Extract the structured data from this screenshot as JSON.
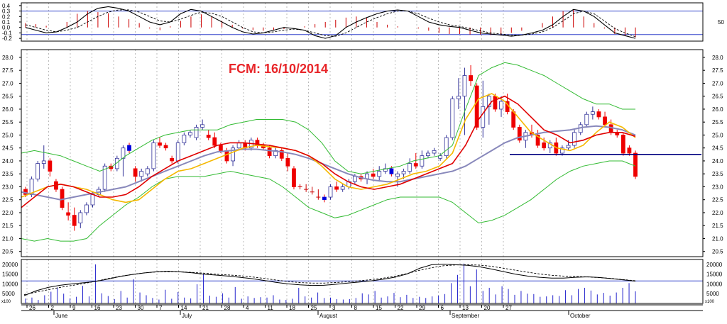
{
  "chart_data": {
    "type": "candlestick",
    "title": "FCM: 16/10/2014",
    "title_color": "#e8262a",
    "grid": true,
    "colors": {
      "up_body": "#ffffff",
      "down_body": "#ee0000",
      "blue_body": "#0000dd",
      "sma_short": "#f5b800",
      "sma_mid": "#e00000",
      "sma_long": "#8888bb",
      "bollinger": "#33bb33",
      "support": "#000080",
      "osc_bar": "#cc0000",
      "osc_line": "#000000",
      "panel_line": "#3344cc",
      "volume": "#2222cc"
    },
    "dates": [
      "26",
      "2",
      "9",
      "16",
      "23",
      "30",
      "7",
      "14",
      "21",
      "28",
      "4",
      "11",
      "18",
      "25",
      "3",
      "8",
      "15",
      "22",
      "29",
      "6",
      "13",
      "20",
      "27"
    ],
    "months": [
      "June",
      "July",
      "August",
      "September",
      "October"
    ],
    "price_panel": {
      "ylim": [
        20.3,
        28.3
      ],
      "ticks": [
        "28.0",
        "27.5",
        "27.0",
        "26.5",
        "26.0",
        "25.5",
        "25.0",
        "24.5",
        "24.0",
        "23.5",
        "23.0",
        "22.5",
        "22.0",
        "21.5",
        "21.0",
        "20.5"
      ],
      "support_level": 24.25,
      "candles": [
        [
          22.9,
          23.0,
          22.6,
          22.7
        ],
        [
          22.7,
          23.4,
          22.6,
          23.3
        ],
        [
          23.3,
          24.0,
          23.2,
          23.9
        ],
        [
          23.9,
          24.6,
          23.7,
          24.0
        ],
        [
          24.0,
          24.1,
          23.4,
          23.6
        ],
        [
          23.2,
          23.3,
          22.8,
          22.9
        ],
        [
          22.9,
          23.0,
          22.1,
          22.2
        ],
        [
          22.0,
          22.4,
          21.7,
          21.9
        ],
        [
          21.9,
          22.2,
          21.3,
          21.5
        ],
        [
          21.6,
          22.1,
          21.4,
          22.0
        ],
        [
          22.0,
          22.4,
          21.9,
          22.3
        ],
        [
          22.3,
          22.8,
          22.2,
          22.7
        ],
        [
          22.7,
          23.0,
          22.6,
          22.9
        ],
        [
          22.9,
          23.9,
          22.8,
          23.8
        ],
        [
          23.8,
          23.9,
          23.6,
          23.7
        ],
        [
          23.7,
          24.2,
          23.6,
          24.1
        ],
        [
          24.1,
          24.6,
          23.4,
          24.5
        ],
        [
          24.6,
          24.7,
          24.3,
          24.4
        ],
        [
          23.7,
          23.8,
          23.2,
          23.4
        ],
        [
          23.4,
          23.7,
          23.2,
          23.6
        ],
        [
          23.5,
          23.8,
          23.4,
          23.7
        ],
        [
          23.7,
          24.8,
          23.6,
          24.7
        ],
        [
          24.7,
          24.9,
          24.5,
          24.6
        ],
        [
          24.6,
          24.7,
          24.4,
          24.5
        ],
        [
          24.1,
          24.2,
          23.9,
          24.0
        ],
        [
          24.0,
          24.8,
          23.9,
          24.7
        ],
        [
          24.7,
          25.1,
          24.6,
          25.0
        ],
        [
          25.0,
          25.2,
          24.9,
          25.1
        ],
        [
          24.9,
          25.4,
          24.8,
          25.3
        ],
        [
          25.3,
          25.6,
          25.2,
          25.4
        ],
        [
          25.0,
          25.2,
          24.8,
          24.9
        ],
        [
          24.9,
          25.1,
          24.5,
          24.6
        ],
        [
          24.6,
          24.7,
          24.3,
          24.4
        ],
        [
          24.4,
          24.5,
          23.9,
          24.0
        ],
        [
          24.0,
          24.6,
          23.8,
          24.5
        ],
        [
          24.5,
          24.8,
          24.4,
          24.7
        ],
        [
          24.7,
          24.8,
          24.4,
          24.5
        ],
        [
          24.5,
          24.9,
          24.4,
          24.8
        ],
        [
          24.8,
          24.9,
          24.5,
          24.6
        ],
        [
          24.6,
          24.7,
          24.4,
          24.5
        ],
        [
          24.5,
          24.6,
          24.1,
          24.2
        ],
        [
          24.2,
          24.5,
          24.1,
          24.4
        ],
        [
          24.4,
          24.5,
          24.0,
          24.1
        ],
        [
          24.1,
          24.3,
          23.6,
          23.8
        ],
        [
          23.7,
          23.8,
          22.9,
          23.0
        ],
        [
          23.0,
          23.1,
          22.9,
          23.0
        ],
        [
          23.0,
          23.1,
          22.8,
          22.9
        ],
        [
          22.9,
          23.0,
          22.7,
          22.8
        ],
        [
          22.8,
          22.9,
          22.5,
          22.6
        ],
        [
          22.6,
          22.7,
          22.4,
          22.5
        ],
        [
          22.6,
          23.1,
          22.5,
          23.0
        ],
        [
          23.0,
          23.2,
          22.8,
          22.9
        ],
        [
          22.9,
          23.1,
          22.8,
          23.0
        ],
        [
          23.0,
          23.3,
          22.9,
          23.2
        ],
        [
          23.2,
          23.5,
          23.1,
          23.4
        ],
        [
          23.4,
          23.5,
          23.2,
          23.3
        ],
        [
          23.3,
          23.6,
          23.1,
          23.5
        ],
        [
          23.5,
          23.7,
          23.3,
          23.4
        ],
        [
          23.4,
          23.8,
          23.2,
          23.6
        ],
        [
          23.6,
          23.9,
          23.5,
          23.7
        ],
        [
          23.7,
          23.8,
          23.4,
          23.5
        ],
        [
          23.4,
          23.6,
          23.0,
          23.5
        ],
        [
          23.5,
          23.7,
          23.3,
          23.6
        ],
        [
          23.6,
          24.1,
          23.5,
          23.9
        ],
        [
          23.9,
          24.3,
          23.7,
          23.8
        ],
        [
          23.8,
          24.4,
          23.7,
          24.2
        ],
        [
          24.2,
          24.4,
          24.1,
          24.3
        ],
        [
          24.3,
          24.5,
          24.2,
          24.4
        ],
        [
          24.1,
          24.3,
          24.0,
          24.2
        ],
        [
          24.2,
          25.0,
          24.1,
          24.9
        ],
        [
          24.9,
          26.5,
          24.8,
          26.4
        ],
        [
          26.4,
          27.2,
          26.0,
          26.5
        ],
        [
          26.5,
          27.6,
          25.0,
          27.3
        ],
        [
          27.3,
          27.7,
          26.9,
          27.1
        ],
        [
          26.9,
          27.0,
          25.2,
          25.3
        ],
        [
          25.3,
          27.1,
          24.9,
          26.1
        ],
        [
          26.1,
          26.6,
          25.4,
          26.5
        ],
        [
          26.5,
          26.6,
          25.9,
          26.0
        ],
        [
          26.0,
          26.5,
          25.7,
          26.3
        ],
        [
          26.3,
          26.6,
          25.8,
          25.9
        ],
        [
          25.9,
          26.0,
          25.2,
          25.3
        ],
        [
          25.3,
          25.4,
          24.7,
          24.8
        ],
        [
          24.8,
          25.2,
          24.5,
          25.1
        ],
        [
          25.1,
          25.4,
          24.9,
          25.0
        ],
        [
          25.0,
          25.2,
          24.5,
          24.6
        ],
        [
          24.7,
          24.9,
          24.4,
          24.5
        ],
        [
          24.5,
          24.8,
          24.3,
          24.7
        ],
        [
          24.7,
          24.9,
          24.2,
          24.3
        ],
        [
          24.3,
          24.6,
          24.2,
          24.5
        ],
        [
          24.5,
          24.8,
          24.4,
          24.6
        ],
        [
          24.6,
          25.2,
          24.5,
          25.1
        ],
        [
          25.1,
          25.5,
          25.0,
          25.4
        ],
        [
          25.4,
          25.9,
          25.3,
          25.8
        ],
        [
          25.8,
          26.1,
          25.6,
          25.9
        ],
        [
          25.9,
          26.0,
          25.6,
          25.7
        ],
        [
          25.7,
          25.9,
          25.3,
          25.4
        ],
        [
          25.4,
          25.6,
          25.0,
          25.1
        ],
        [
          25.1,
          25.2,
          24.9,
          25.0
        ],
        [
          25.0,
          25.1,
          24.2,
          24.3
        ],
        [
          24.5,
          24.6,
          24.2,
          24.3
        ],
        [
          24.3,
          24.4,
          23.3,
          23.4
        ]
      ],
      "blue_candles": [
        17,
        49,
        60
      ],
      "doji_crosses": [
        45,
        46,
        47,
        48
      ],
      "sma_short": [
        22.6,
        22.8,
        23.0,
        23.1,
        23.0,
        22.9,
        22.7,
        22.5,
        22.4,
        22.5,
        22.9,
        23.3,
        23.6,
        23.7,
        23.9,
        24.1,
        24.3,
        24.5,
        24.6,
        24.55,
        24.5,
        24.4,
        24.2,
        23.8,
        23.3,
        23.0,
        22.9,
        23.0,
        23.1,
        23.3,
        23.5,
        23.6,
        23.8,
        24.3,
        25.6,
        26.4,
        26.6,
        26.3,
        25.7,
        25.1,
        24.8,
        24.5,
        24.4,
        24.6,
        25.1,
        25.5,
        25.3,
        24.9
      ],
      "sma_mid": [
        22.2,
        22.6,
        23.0,
        23.1,
        23.0,
        22.8,
        22.6,
        22.6,
        22.7,
        23.0,
        23.4,
        23.7,
        24.0,
        24.2,
        24.4,
        24.6,
        24.7,
        24.7,
        24.65,
        24.6,
        24.5,
        24.4,
        24.2,
        23.9,
        23.5,
        23.2,
        23.0,
        22.9,
        23.0,
        23.1,
        23.3,
        23.5,
        23.7,
        23.9,
        24.6,
        25.6,
        26.3,
        26.5,
        26.2,
        25.7,
        25.2,
        25.0,
        24.7,
        24.8,
        25.0,
        25.1,
        25.1,
        24.95
      ],
      "sma_long": [
        22.8,
        22.7,
        22.6,
        22.5,
        22.6,
        22.7,
        22.8,
        22.9,
        23.0,
        23.2,
        23.4,
        23.6,
        23.8,
        24.0,
        24.2,
        24.35,
        24.4,
        24.45,
        24.45,
        24.4,
        24.35,
        24.25,
        24.1,
        23.9,
        23.7,
        23.5,
        23.35,
        23.25,
        23.2,
        23.2,
        23.3,
        23.4,
        23.5,
        23.6,
        23.8,
        24.1,
        24.4,
        24.7,
        24.9,
        25.0,
        25.1,
        25.15,
        25.2,
        25.3,
        25.35,
        25.3,
        25.2,
        25.0
      ],
      "boll_upper": [
        24.3,
        24.4,
        24.3,
        24.2,
        24.0,
        23.8,
        23.6,
        23.8,
        24.2,
        24.5,
        24.8,
        25.0,
        25.1,
        25.2,
        25.2,
        25.2,
        25.4,
        25.5,
        25.6,
        25.6,
        25.6,
        25.5,
        25.2,
        24.7,
        24.0,
        23.6,
        23.5,
        23.6,
        23.7,
        23.8,
        24.0,
        24.1,
        24.2,
        24.6,
        26.0,
        27.3,
        27.6,
        27.8,
        27.7,
        27.5,
        27.3,
        27.0,
        26.7,
        26.4,
        26.2,
        26.2,
        26.0,
        26.0
      ],
      "boll_lower": [
        21.0,
        20.9,
        21.0,
        20.9,
        20.9,
        21.0,
        21.5,
        21.9,
        22.3,
        22.6,
        23.0,
        23.3,
        23.4,
        23.4,
        23.4,
        23.5,
        23.6,
        23.5,
        23.4,
        23.3,
        23.0,
        22.6,
        22.2,
        22.0,
        21.8,
        21.9,
        22.1,
        22.3,
        22.5,
        22.6,
        22.6,
        22.6,
        22.6,
        22.4,
        22.0,
        21.6,
        21.7,
        21.9,
        22.2,
        22.5,
        22.9,
        23.3,
        23.6,
        23.8,
        23.9,
        24.0,
        24.0,
        23.8
      ]
    },
    "oscillator_panel": {
      "ylim": [
        -0.25,
        0.45
      ],
      "ticks": [
        "0.4",
        "0.3",
        "0.2",
        "0.1",
        "0.0",
        "-0.1",
        "-0.2"
      ],
      "right_ticks": [
        "50"
      ],
      "levels": [
        0.3,
        -0.13
      ],
      "macd": [
        0.0,
        -0.05,
        -0.1,
        -0.08,
        0.0,
        0.1,
        0.25,
        0.35,
        0.38,
        0.35,
        0.3,
        0.2,
        0.1,
        0.05,
        0.1,
        0.25,
        0.33,
        0.3,
        0.2,
        0.1,
        0.0,
        -0.08,
        -0.12,
        -0.1,
        -0.05,
        0.0,
        -0.02,
        -0.05,
        -0.15,
        -0.2,
        -0.15,
        0.0,
        0.1,
        0.18,
        0.25,
        0.3,
        0.32,
        0.3,
        0.2,
        0.1,
        0.05,
        0.02,
        0.0,
        -0.05,
        -0.1,
        -0.12,
        -0.14,
        -0.16,
        -0.14,
        -0.1,
        -0.05,
        0.05,
        0.2,
        0.33,
        0.3,
        0.2,
        0.05,
        -0.1,
        -0.15,
        -0.2
      ],
      "signal": [
        0.05,
        0.0,
        -0.05,
        -0.08,
        -0.05,
        0.0,
        0.1,
        0.2,
        0.28,
        0.32,
        0.32,
        0.28,
        0.2,
        0.12,
        0.1,
        0.15,
        0.22,
        0.28,
        0.26,
        0.2,
        0.1,
        0.0,
        -0.08,
        -0.1,
        -0.08,
        -0.05,
        -0.03,
        -0.05,
        -0.1,
        -0.15,
        -0.16,
        -0.1,
        0.0,
        0.1,
        0.18,
        0.25,
        0.3,
        0.3,
        0.25,
        0.17,
        0.1,
        0.05,
        0.02,
        -0.02,
        -0.06,
        -0.1,
        -0.12,
        -0.14,
        -0.14,
        -0.12,
        -0.08,
        0.0,
        0.12,
        0.25,
        0.3,
        0.25,
        0.12,
        -0.02,
        -0.1,
        -0.17
      ],
      "histogram": [
        0.08,
        0.06,
        0.03,
        0.0,
        0.1,
        0.25,
        0.3,
        0.28,
        0.26,
        0.2,
        0.15,
        0.08,
        -0.02,
        -0.05,
        0.02,
        0.12,
        0.2,
        0.24,
        0.2,
        0.12,
        0.05,
        -0.02,
        -0.05,
        -0.06,
        -0.05,
        -0.03,
        0.0,
        0.02,
        0.06,
        0.1,
        0.14,
        0.18,
        0.2,
        0.18,
        0.1,
        0.05,
        0.02,
        0.0,
        -0.02,
        -0.06,
        -0.1,
        -0.12,
        -0.12,
        -0.13,
        -0.13,
        -0.14,
        -0.14,
        -0.1,
        -0.06,
        0.0,
        0.08,
        0.2,
        0.3,
        0.32,
        0.2,
        0.08,
        -0.02,
        -0.12,
        -0.16,
        -0.18
      ]
    },
    "volume_panel": {
      "ylim": [
        0,
        22500
      ],
      "ticks": [
        "20000",
        "15000",
        "10000",
        "5000"
      ],
      "unit_label": "x100",
      "level": 11500,
      "volume": [
        2500,
        3000,
        1800,
        4200,
        6000,
        8200,
        5000,
        2600,
        3400,
        9000,
        3600,
        20000,
        5200,
        3800,
        2200,
        6400,
        3000,
        12400,
        5600,
        4200,
        2800,
        2000,
        7000,
        2400,
        5800,
        3000,
        2600,
        9800,
        15200,
        4000,
        3400,
        5200,
        3000,
        8400,
        2400,
        3600,
        2800,
        3200,
        3000,
        4200,
        2000,
        1800,
        2400,
        8000,
        3600,
        3000,
        5600,
        2800,
        3000,
        2200,
        2000,
        2200,
        2800,
        5200,
        4600,
        6400,
        3000,
        3600,
        5400,
        3200,
        4400,
        2800,
        3400,
        2800,
        3600,
        4000,
        4800,
        10400,
        14600,
        20400,
        8800,
        17400,
        6400,
        8000,
        4600,
        8800,
        7400,
        4400,
        6400,
        5000,
        4800,
        3400,
        3600,
        4200,
        3800,
        6800,
        4200,
        7400,
        8000,
        6600,
        4600,
        5400,
        4000,
        5600,
        8000,
        10400,
        6200
      ],
      "line_a": [
        4000,
        6500,
        8200,
        9300,
        10000,
        10600,
        11300,
        12500,
        13800,
        14800,
        15600,
        16200,
        16500,
        16200,
        15700,
        15000,
        14500,
        14000,
        13400,
        12700,
        11800,
        10800,
        10000,
        9500,
        9200,
        9300,
        9800,
        10400,
        11000,
        11600,
        12400,
        13500,
        15200,
        18000,
        19800,
        20100,
        19800,
        19500,
        18800,
        17600,
        16300,
        15000,
        14000,
        13400,
        13000,
        13000,
        13400,
        13600,
        13300,
        12700,
        12100,
        11400
      ],
      "line_b": [
        4500,
        5800,
        7000,
        8200,
        9200,
        10200,
        11400,
        12700,
        13900,
        14800,
        15600,
        16100,
        16300,
        16200,
        15900,
        15500,
        15000,
        14600,
        14200,
        13600,
        12800,
        12000,
        11200,
        10700,
        10400,
        10400,
        10700,
        11100,
        11600,
        12200,
        13000,
        14000,
        15400,
        17000,
        18300,
        19300,
        19700,
        19800,
        19600,
        19000,
        18000,
        17000,
        16000,
        15100,
        14400,
        14000,
        13800,
        13600,
        13200,
        12800,
        12200,
        11600
      ]
    }
  }
}
